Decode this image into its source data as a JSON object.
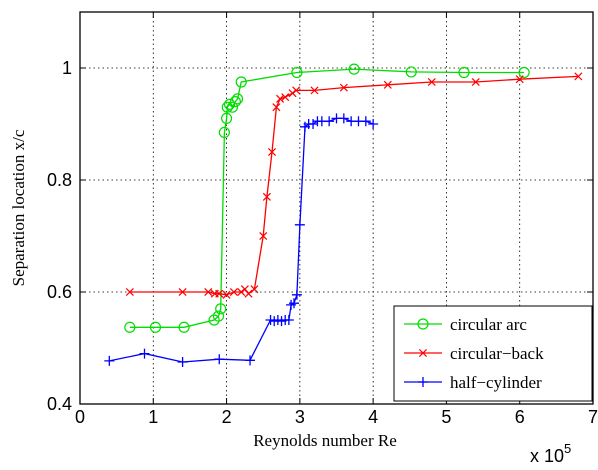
{
  "chart_data": {
    "type": "line",
    "xlabel": "Reynolds number Re",
    "ylabel": "Separation location x/c",
    "x_multiplier_label": "x 10",
    "x_multiplier_exponent": "5",
    "xlim": [
      0,
      7
    ],
    "ylim": [
      0.4,
      1.1
    ],
    "xticks": [
      "0",
      "1",
      "2",
      "3",
      "4",
      "5",
      "6",
      "7"
    ],
    "yticks": [
      "0.4",
      "0.6",
      "0.8",
      "1"
    ],
    "grid": true,
    "legend_position": "lower-right",
    "series": [
      {
        "name": "circular arc",
        "color": "#00dd00",
        "marker": "circle",
        "x": [
          0.68,
          1.03,
          1.42,
          1.83,
          1.89,
          1.92,
          1.97,
          2.0,
          2.01,
          2.04,
          2.08,
          2.12,
          2.15,
          2.2,
          2.96,
          3.74,
          4.52,
          5.24,
          6.06
        ],
        "y": [
          0.537,
          0.537,
          0.537,
          0.55,
          0.557,
          0.57,
          0.885,
          0.91,
          0.93,
          0.935,
          0.93,
          0.94,
          0.945,
          0.975,
          0.992,
          0.998,
          0.993,
          0.992,
          0.992
        ]
      },
      {
        "name": "circular−back",
        "color": "#ff0000",
        "marker": "x",
        "x": [
          0.68,
          1.4,
          1.75,
          1.84,
          1.9,
          2.0,
          2.1,
          2.2,
          2.25,
          2.3,
          2.38,
          2.5,
          2.55,
          2.62,
          2.68,
          2.73,
          2.8,
          2.9,
          2.95,
          3.2,
          3.6,
          4.2,
          4.8,
          5.4,
          6.0,
          6.8
        ],
        "y": [
          0.6,
          0.6,
          0.6,
          0.597,
          0.597,
          0.595,
          0.6,
          0.6,
          0.605,
          0.597,
          0.605,
          0.7,
          0.77,
          0.85,
          0.93,
          0.945,
          0.948,
          0.955,
          0.96,
          0.96,
          0.965,
          0.97,
          0.975,
          0.975,
          0.98,
          0.985
        ]
      },
      {
        "name": "half−cylinder",
        "color": "#0000ff",
        "marker": "plus",
        "x": [
          0.4,
          0.88,
          1.4,
          1.9,
          2.32,
          2.6,
          2.65,
          2.7,
          2.75,
          2.8,
          2.85,
          2.88,
          2.92,
          2.96,
          3.0,
          3.07,
          3.12,
          3.18,
          3.24,
          3.3,
          3.4,
          3.5,
          3.6,
          3.7,
          3.8,
          3.9,
          4.0
        ],
        "y": [
          0.477,
          0.49,
          0.475,
          0.48,
          0.478,
          0.55,
          0.548,
          0.55,
          0.548,
          0.55,
          0.55,
          0.577,
          0.58,
          0.595,
          0.72,
          0.895,
          0.9,
          0.9,
          0.905,
          0.905,
          0.905,
          0.91,
          0.91,
          0.905,
          0.905,
          0.905,
          0.9
        ]
      }
    ]
  }
}
